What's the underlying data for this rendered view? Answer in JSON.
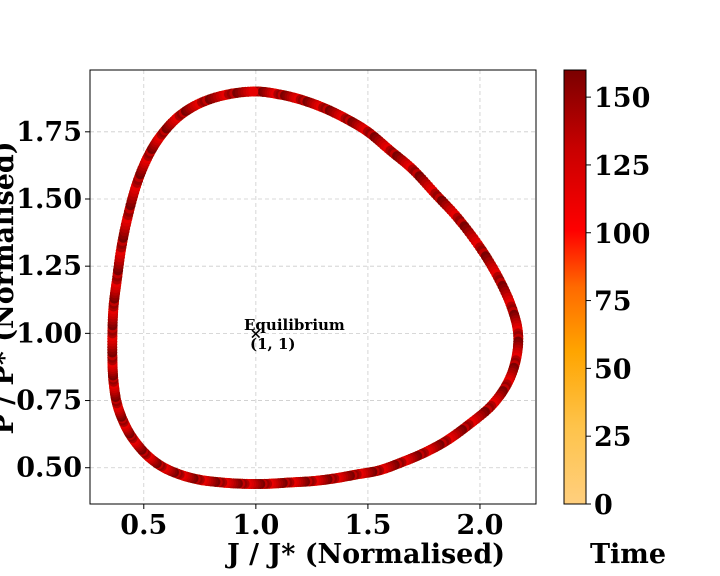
{
  "chart_data": {
    "type": "scatter",
    "xlabel": "J / J* (Normalised)",
    "ylabel": "P / P* (Normalised)",
    "xlim": [
      0.26,
      2.25
    ],
    "ylim": [
      0.365,
      1.98
    ],
    "x_ticks": [
      "0.5",
      "1.0",
      "1.5",
      "2.0"
    ],
    "y_ticks": [
      "0.50",
      "0.75",
      "1.00",
      "1.25",
      "1.50",
      "1.75"
    ],
    "grid": true,
    "colorbar": {
      "label": "Time",
      "range": [
        0,
        160
      ],
      "ticks": [
        "0",
        "25",
        "50",
        "75",
        "100",
        "125",
        "150"
      ],
      "colormap": [
        "#ffcf7e",
        "#fec34a",
        "#ffa500",
        "#ff6a00",
        "#ff0000",
        "#c80000",
        "#7a0000"
      ]
    },
    "annotation": {
      "text_line1": "Equilibrium",
      "text_line2": "(1, 1)",
      "marker": "×",
      "x": 1.0,
      "y": 1.0
    },
    "series": [
      {
        "points": [
          [
            1.0,
            1.9
          ],
          [
            1.1,
            1.89
          ],
          [
            1.2,
            1.87
          ],
          [
            1.3,
            1.84
          ],
          [
            1.4,
            1.8
          ],
          [
            1.5,
            1.75
          ],
          [
            1.6,
            1.68
          ],
          [
            1.7,
            1.61
          ],
          [
            1.8,
            1.52
          ],
          [
            1.9,
            1.43
          ],
          [
            2.0,
            1.32
          ],
          [
            2.08,
            1.21
          ],
          [
            2.14,
            1.1
          ],
          [
            2.17,
            1.0
          ],
          [
            2.16,
            0.9
          ],
          [
            2.12,
            0.81
          ],
          [
            2.05,
            0.73
          ],
          [
            1.95,
            0.66
          ],
          [
            1.85,
            0.6
          ],
          [
            1.75,
            0.555
          ],
          [
            1.65,
            0.52
          ],
          [
            1.55,
            0.49
          ],
          [
            1.45,
            0.475
          ],
          [
            1.35,
            0.46
          ],
          [
            1.25,
            0.45
          ],
          [
            1.15,
            0.445
          ],
          [
            1.05,
            0.44
          ],
          [
            0.95,
            0.44
          ],
          [
            0.85,
            0.445
          ],
          [
            0.75,
            0.455
          ],
          [
            0.66,
            0.475
          ],
          [
            0.58,
            0.505
          ],
          [
            0.51,
            0.55
          ],
          [
            0.45,
            0.61
          ],
          [
            0.41,
            0.67
          ],
          [
            0.38,
            0.74
          ],
          [
            0.365,
            0.82
          ],
          [
            0.36,
            0.9
          ],
          [
            0.36,
            1.0
          ],
          [
            0.365,
            1.1
          ],
          [
            0.38,
            1.2
          ],
          [
            0.4,
            1.32
          ],
          [
            0.43,
            1.44
          ],
          [
            0.47,
            1.56
          ],
          [
            0.52,
            1.66
          ],
          [
            0.58,
            1.74
          ],
          [
            0.66,
            1.81
          ],
          [
            0.76,
            1.86
          ],
          [
            0.88,
            1.89
          ]
        ]
      }
    ]
  }
}
